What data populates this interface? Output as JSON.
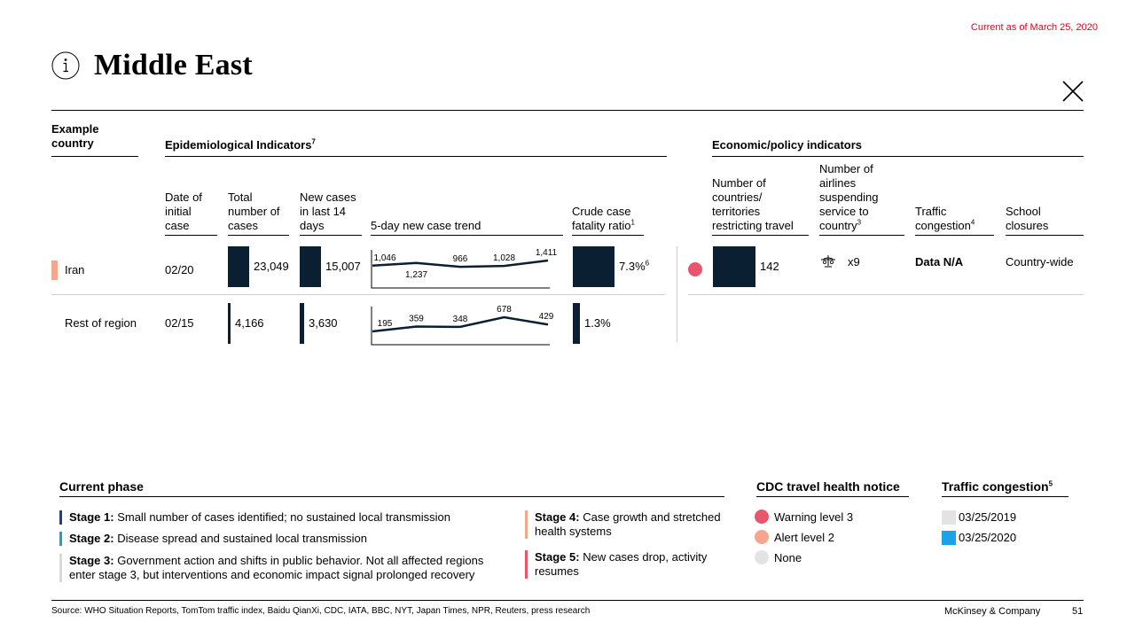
{
  "header": {
    "date_note": "Current as of March 25, 2020",
    "title": "Middle East",
    "info_icon": "info-icon",
    "close_icon": "close-icon"
  },
  "columns": {
    "example_country": "Example country",
    "epi_group": "Epidemiological Indicators",
    "epi_group_sup": "7",
    "econ_group": "Economic/policy indicators",
    "date_initial": "Date of initial case",
    "total_cases": "Total number of cases",
    "new_cases": "New cases in last 14 days",
    "trend": "5-day new case trend",
    "cfr": "Crude case fatality ratio",
    "cfr_sup": "1",
    "countries_restricting": "Number of countries/ territories restricting travel",
    "airlines": "Number of airlines suspending service to country",
    "airlines_sup": "3",
    "traffic": "Traffic congestion",
    "traffic_sup": "4",
    "schools": "School closures"
  },
  "rows": [
    {
      "country": "Iran",
      "date": "02/20",
      "total": "23,049",
      "total_value": 23049,
      "new14": "15,007",
      "new14_value": 15007,
      "trend": [
        1046,
        1237,
        966,
        1028,
        1411
      ],
      "trend_labels": [
        "1,046",
        "1,237",
        "966",
        "1,028",
        "1,411"
      ],
      "cfr": "7.3%",
      "cfr_sup": "6",
      "cfr_value": 7.3,
      "cdc_color": "#e8566c",
      "restricting": "142",
      "restricting_value": 142,
      "airlines": "x9",
      "traffic": "Data N/A",
      "schools": "Country-wide"
    },
    {
      "country": "Rest of region",
      "date": "02/15",
      "total": "4,166",
      "total_value": 4166,
      "new14": "3,630",
      "new14_value": 3630,
      "trend": [
        195,
        359,
        348,
        678,
        429
      ],
      "trend_labels": [
        "195",
        "359",
        "348",
        "678",
        "429"
      ],
      "cfr": "1.3%",
      "cfr_value": 1.3
    }
  ],
  "legend": {
    "phase_title": "Current phase",
    "stages": [
      {
        "label": "Stage 1:",
        "text": "Small number of cases identified; no sustained local transmission",
        "color": "#1f3f8f"
      },
      {
        "label": "Stage 2:",
        "text": "Disease spread and sustained local transmission",
        "color": "#1a9fd6"
      },
      {
        "label": "Stage 3:",
        "text": "Government action and shifts in public behavior. Not all affected regions enter stage 3, but interventions and economic impact signal prolonged recovery",
        "color": "#d9d9d9"
      },
      {
        "label": "Stage 4:",
        "text": "Case growth and stretched health systems",
        "color": "#f2a98a"
      },
      {
        "label": "Stage 5:",
        "text": "New cases drop, activity resumes",
        "color": "#e8566c"
      }
    ],
    "cdc_title": "CDC travel health notice",
    "cdc_items": [
      {
        "label": "Warning level 3",
        "color": "#e8566c"
      },
      {
        "label": "Alert level 2",
        "color": "#f6a68c"
      },
      {
        "label": "None",
        "color": "#e3e3e3"
      }
    ],
    "traffic_title": "Traffic congestion",
    "traffic_sup": "5",
    "traffic_items": [
      {
        "label": "03/25/2019",
        "color": "#e3e3e3"
      },
      {
        "label": "03/25/2020",
        "color": "#1aa3e8"
      }
    ]
  },
  "footer": {
    "source": "Source: WHO Situation Reports, TomTom traffic index, Baidu QianXi, CDC, IATA, BBC, NYT, Japan Times, NPR, Reuters, press research",
    "brand": "McKinsey & Company",
    "page": "51"
  },
  "colors": {
    "accent_red": "#e8001c",
    "navy": "#0b1f33",
    "iran_marker": "#f6a68c"
  }
}
